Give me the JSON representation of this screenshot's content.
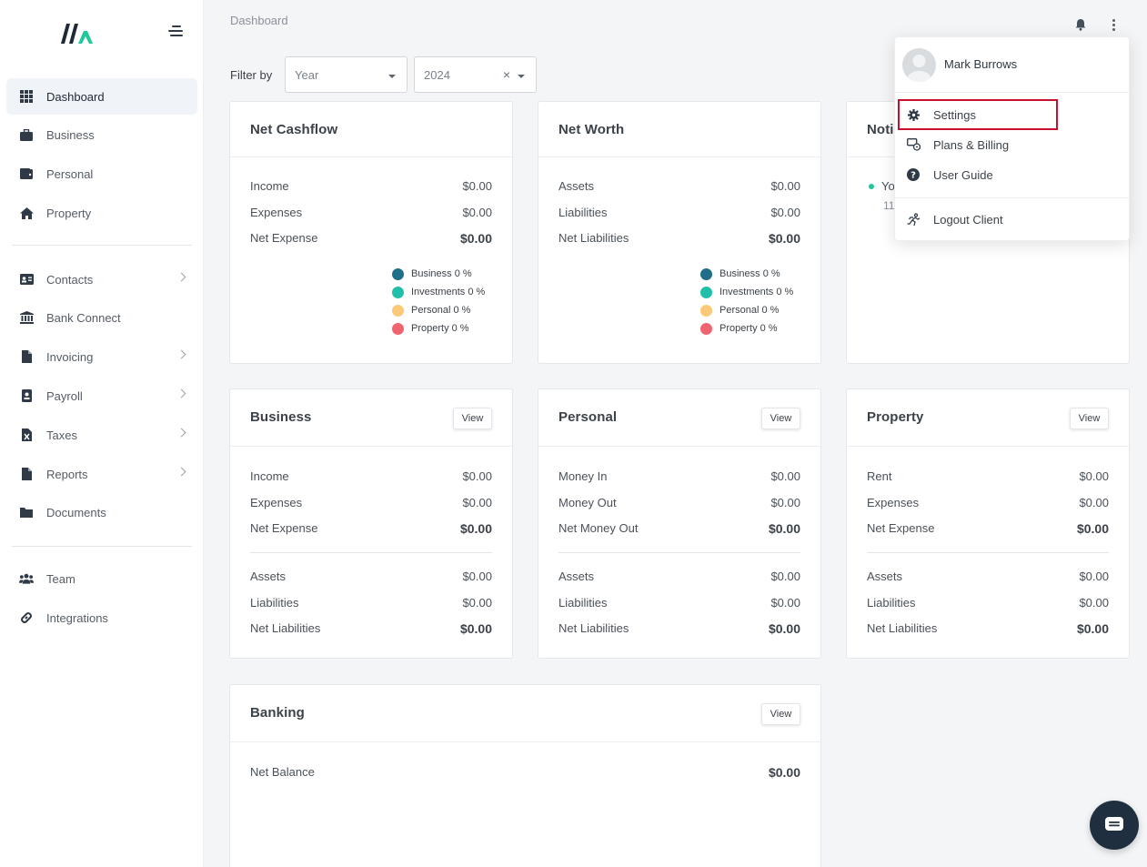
{
  "breadcrumb": "Dashboard",
  "sidebar": {
    "items": [
      {
        "label": "Dashboard"
      },
      {
        "label": "Business"
      },
      {
        "label": "Personal"
      },
      {
        "label": "Property"
      },
      {
        "label": "Contacts"
      },
      {
        "label": "Bank Connect"
      },
      {
        "label": "Invoicing"
      },
      {
        "label": "Payroll"
      },
      {
        "label": "Taxes"
      },
      {
        "label": "Reports"
      },
      {
        "label": "Documents"
      },
      {
        "label": "Team"
      },
      {
        "label": "Integrations"
      }
    ]
  },
  "filter": {
    "label": "Filter by",
    "period_placeholder": "Year",
    "year_value": "2024",
    "clear": "×"
  },
  "net_cashflow": {
    "title": "Net Cashflow",
    "rows": [
      {
        "label": "Income",
        "value": "$0.00"
      },
      {
        "label": "Expenses",
        "value": "$0.00"
      },
      {
        "label": "Net Expense",
        "value": "$0.00"
      }
    ],
    "legend": [
      {
        "label": "Business 0 %"
      },
      {
        "label": "Investments 0 %"
      },
      {
        "label": "Personal 0 %"
      },
      {
        "label": "Property 0 %"
      }
    ]
  },
  "net_worth": {
    "title": "Net Worth",
    "rows": [
      {
        "label": "Assets",
        "value": "$0.00"
      },
      {
        "label": "Liabilities",
        "value": "$0.00"
      },
      {
        "label": "Net Liabilities",
        "value": "$0.00"
      }
    ],
    "legend": [
      {
        "label": "Business 0 %"
      },
      {
        "label": "Investments 0 %"
      },
      {
        "label": "Personal 0 %"
      },
      {
        "label": "Property 0 %"
      }
    ]
  },
  "notifications": {
    "title": "Noti",
    "item_text": "Yo",
    "item_sub": "11"
  },
  "business": {
    "title": "Business",
    "view": "View",
    "rows": [
      {
        "label": "Income",
        "value": "$0.00"
      },
      {
        "label": "Expenses",
        "value": "$0.00"
      },
      {
        "label": "Net Expense",
        "value": "$0.00"
      },
      {
        "label": "Assets",
        "value": "$0.00"
      },
      {
        "label": "Liabilities",
        "value": "$0.00"
      },
      {
        "label": "Net Liabilities",
        "value": "$0.00"
      }
    ]
  },
  "personal": {
    "title": "Personal",
    "view": "View",
    "rows": [
      {
        "label": "Money In",
        "value": "$0.00"
      },
      {
        "label": "Money Out",
        "value": "$0.00"
      },
      {
        "label": "Net Money Out",
        "value": "$0.00"
      },
      {
        "label": "Assets",
        "value": "$0.00"
      },
      {
        "label": "Liabilities",
        "value": "$0.00"
      },
      {
        "label": "Net Liabilities",
        "value": "$0.00"
      }
    ]
  },
  "property": {
    "title": "Property",
    "view": "View",
    "rows": [
      {
        "label": "Rent",
        "value": "$0.00"
      },
      {
        "label": "Expenses",
        "value": "$0.00"
      },
      {
        "label": "Net Expense",
        "value": "$0.00"
      },
      {
        "label": "Assets",
        "value": "$0.00"
      },
      {
        "label": "Liabilities",
        "value": "$0.00"
      },
      {
        "label": "Net Liabilities",
        "value": "$0.00"
      }
    ]
  },
  "banking": {
    "title": "Banking",
    "view": "View",
    "rows": [
      {
        "label": "Net Balance",
        "value": "$0.00"
      }
    ]
  },
  "user_menu": {
    "name": "Mark Burrows",
    "items": [
      {
        "label": "Settings"
      },
      {
        "label": "Plans & Billing"
      },
      {
        "label": "User Guide"
      },
      {
        "label": "Logout Client"
      }
    ]
  },
  "colors": {
    "business": "#1f6f8b",
    "investments": "#1fbfa9",
    "personal": "#fcc978",
    "property": "#f06470",
    "highlight": "#c8102e",
    "logo_accent": "#1fc99a"
  }
}
